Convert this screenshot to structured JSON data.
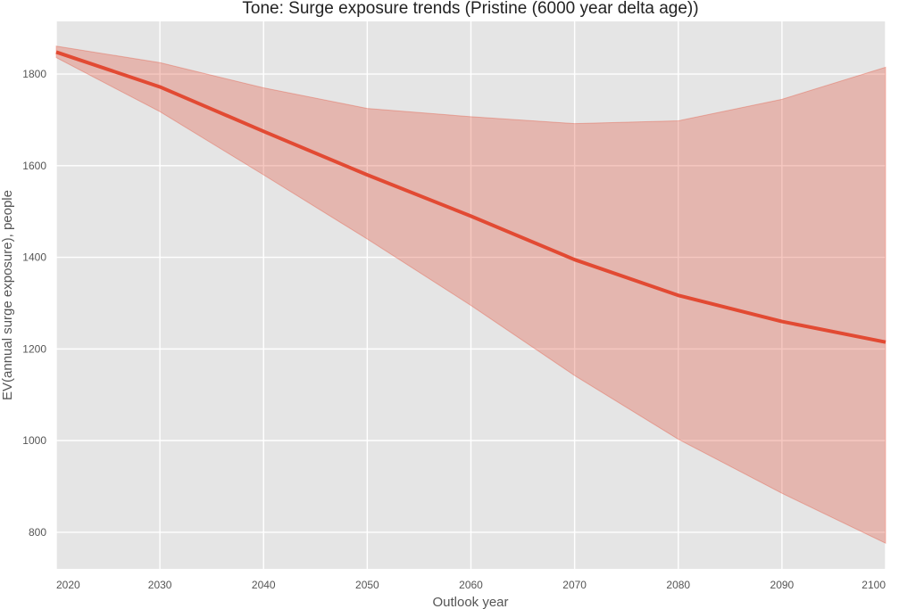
{
  "chart_data": {
    "type": "line",
    "title": "Tone: Surge exposure trends (Pristine (6000 year delta age))",
    "xlabel": "Outlook year",
    "ylabel": "EV(annual surge exposure), people",
    "xlim": [
      2020,
      2100
    ],
    "ylim": [
      720,
      1915
    ],
    "x_ticks": [
      2020,
      2030,
      2040,
      2050,
      2060,
      2070,
      2080,
      2090,
      2100
    ],
    "y_ticks": [
      800,
      1000,
      1200,
      1400,
      1600,
      1800
    ],
    "grid": true,
    "x": [
      2020,
      2030,
      2040,
      2050,
      2060,
      2070,
      2080,
      2090,
      2100
    ],
    "series": [
      {
        "values": [
          1848,
          1772,
          1675,
          1580,
          1490,
          1395,
          1317,
          1260,
          1215
        ]
      }
    ],
    "band": {
      "upper": [
        1861,
        1825,
        1770,
        1725,
        1707,
        1692,
        1698,
        1745,
        1815
      ],
      "lower": [
        1836,
        1718,
        1580,
        1440,
        1295,
        1142,
        1003,
        885,
        776
      ]
    },
    "colors": {
      "line": "#e24a33",
      "band": "#e24a33",
      "background": "#e5e5e5",
      "grid": "#ffffff"
    }
  }
}
